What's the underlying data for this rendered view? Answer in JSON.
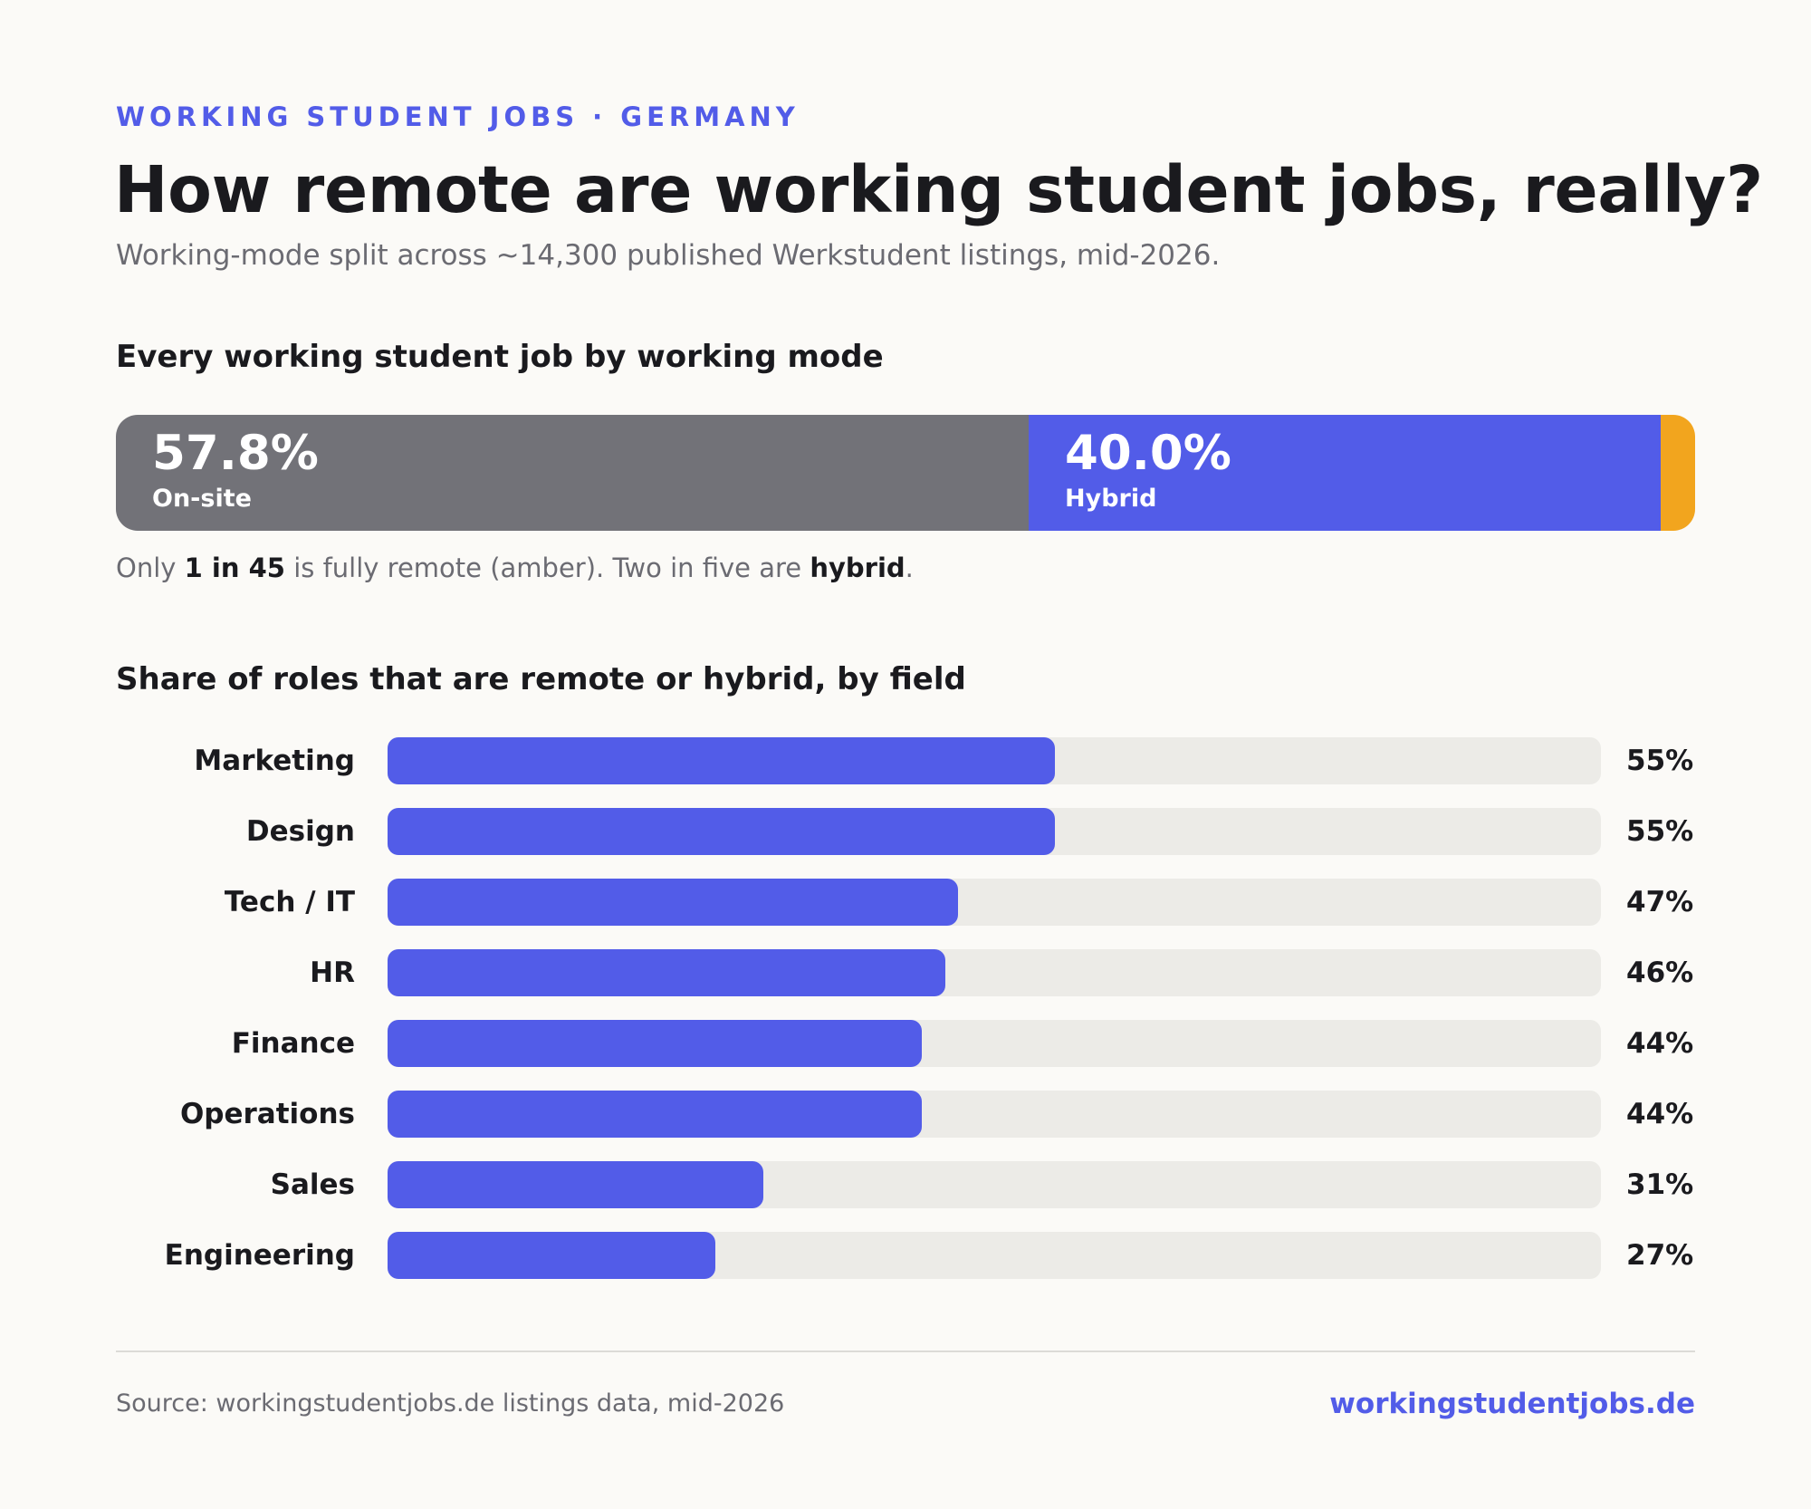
{
  "header": {
    "eyebrow": "WORKING STUDENT JOBS · GERMANY",
    "title": "How remote are working student jobs, really?",
    "subtitle": "Working-mode split across ~14,300 published Werkstudent listings, mid-2026."
  },
  "split_section": {
    "title": "Every working student job by working mode",
    "note_parts": {
      "p1": "Only ",
      "b1": "1 in 45",
      "p2": " is fully remote (amber). Two in five are ",
      "b2": "hybrid",
      "p3": "."
    }
  },
  "field_section": {
    "title": "Share of roles that are remote or hybrid, by field"
  },
  "colors": {
    "accent": "#525ce8",
    "onsite": "#727278",
    "hybrid": "#525ce8",
    "remote": "#f2a51e",
    "track": "#ecebe7"
  },
  "chart_data": [
    {
      "type": "bar",
      "orientation": "horizontal-stacked",
      "title": "Every working student job by working mode",
      "segments": [
        {
          "name": "On-site",
          "value": 57.8,
          "label": "57.8%",
          "color": "#727278"
        },
        {
          "name": "Hybrid",
          "value": 40.0,
          "label": "40.0%",
          "color": "#525ce8"
        },
        {
          "name": "Remote",
          "value": 2.2,
          "label": "",
          "color": "#f2a51e"
        }
      ],
      "total": 100
    },
    {
      "type": "bar",
      "orientation": "horizontal",
      "title": "Share of roles that are remote or hybrid, by field",
      "categories": [
        "Marketing",
        "Design",
        "Tech / IT",
        "HR",
        "Finance",
        "Operations",
        "Sales",
        "Engineering"
      ],
      "values": [
        55,
        55,
        47,
        46,
        44,
        44,
        31,
        27
      ],
      "value_labels": [
        "55%",
        "55%",
        "47%",
        "46%",
        "44%",
        "44%",
        "31%",
        "27%"
      ],
      "xlim": [
        0,
        100
      ],
      "grid": false
    }
  ],
  "footer": {
    "source": "Source: workingstudentjobs.de listings data, mid-2026",
    "brand": "workingstudentjobs.de"
  }
}
